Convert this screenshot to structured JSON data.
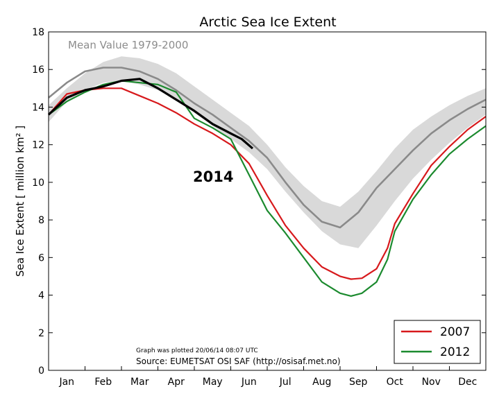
{
  "chart_data": {
    "type": "line",
    "title": "Arctic Sea Ice Extent",
    "ylabel": "Sea Ice Extent [ million km² ]",
    "xlabel": "",
    "ylim": [
      0,
      18
    ],
    "yticks": [
      0,
      2,
      4,
      6,
      8,
      10,
      12,
      14,
      16,
      18
    ],
    "xlim": [
      0,
      12
    ],
    "months": [
      "Jan",
      "Feb",
      "Mar",
      "Apr",
      "May",
      "Jun",
      "Jul",
      "Aug",
      "Sep",
      "Oct",
      "Nov",
      "Dec"
    ],
    "grid": false,
    "legend_position": "bottom-right",
    "annotations": {
      "mean_label": "Mean Value 1979-2000",
      "year_label": "2014",
      "plotted_note": "Graph was plotted 20/06/14 08:07 UTC",
      "source_note": "Source: EUMETSAT OSI SAF (http://osisaf.met.no)"
    },
    "band": {
      "x": [
        0.0,
        0.5,
        1.0,
        1.5,
        2.0,
        2.5,
        3.0,
        3.5,
        4.0,
        4.5,
        5.0,
        5.5,
        6.0,
        6.5,
        7.0,
        7.5,
        8.0,
        8.5,
        9.0,
        9.5,
        10.0,
        10.5,
        11.0,
        11.5,
        12.0
      ],
      "upper": [
        14.1,
        15.0,
        15.8,
        16.4,
        16.7,
        16.6,
        16.3,
        15.8,
        15.1,
        14.4,
        13.7,
        13.0,
        12.0,
        10.8,
        9.8,
        9.0,
        8.7,
        9.5,
        10.6,
        11.8,
        12.8,
        13.5,
        14.1,
        14.6,
        15.0
      ],
      "lower": [
        13.2,
        14.3,
        14.9,
        15.3,
        15.4,
        15.2,
        14.9,
        14.4,
        13.7,
        13.0,
        12.3,
        11.6,
        10.7,
        9.5,
        8.4,
        7.4,
        6.7,
        6.5,
        7.7,
        9.0,
        10.2,
        11.2,
        12.1,
        12.9,
        13.6
      ]
    },
    "series": [
      {
        "name": "2007",
        "color": "#d7191c",
        "x": [
          0.0,
          0.5,
          1.0,
          1.5,
          2.0,
          2.5,
          3.0,
          3.5,
          4.0,
          4.5,
          5.0,
          5.5,
          6.0,
          6.5,
          7.0,
          7.5,
          8.0,
          8.3,
          8.6,
          9.0,
          9.3,
          9.5,
          10.0,
          10.5,
          11.0,
          11.5,
          12.0
        ],
        "y": [
          13.6,
          14.7,
          14.9,
          15.0,
          15.0,
          14.6,
          14.2,
          13.7,
          13.1,
          12.6,
          12.0,
          11.0,
          9.3,
          7.7,
          6.5,
          5.5,
          5.0,
          4.85,
          4.9,
          5.4,
          6.5,
          7.8,
          9.4,
          10.9,
          11.9,
          12.8,
          13.5
        ]
      },
      {
        "name": "2012",
        "color": "#1b8a2e",
        "x": [
          0.0,
          0.5,
          1.0,
          1.5,
          2.0,
          2.5,
          3.0,
          3.5,
          4.0,
          4.5,
          5.0,
          5.5,
          6.0,
          6.5,
          7.0,
          7.5,
          8.0,
          8.3,
          8.6,
          9.0,
          9.3,
          9.5,
          10.0,
          10.5,
          11.0,
          11.5,
          12.0
        ],
        "y": [
          13.6,
          14.3,
          14.8,
          15.2,
          15.4,
          15.3,
          15.2,
          14.8,
          13.4,
          12.9,
          12.3,
          10.4,
          8.5,
          7.3,
          6.0,
          4.7,
          4.1,
          3.95,
          4.1,
          4.7,
          5.9,
          7.4,
          9.1,
          10.4,
          11.5,
          12.3,
          13.0
        ]
      },
      {
        "name": "2014",
        "color": "#000000",
        "x": [
          0.0,
          0.5,
          1.0,
          1.5,
          2.0,
          2.5,
          3.0,
          3.5,
          4.0,
          4.5,
          5.0,
          5.3,
          5.6
        ],
        "y": [
          13.6,
          14.5,
          14.9,
          15.1,
          15.4,
          15.5,
          15.0,
          14.4,
          13.8,
          13.1,
          12.6,
          12.3,
          11.8
        ]
      },
      {
        "name": "Mean Value 1979-2000",
        "color": "#8a8a8a",
        "x": [
          0.0,
          0.5,
          1.0,
          1.5,
          2.0,
          2.5,
          3.0,
          3.5,
          4.0,
          4.5,
          5.0,
          5.5,
          6.0,
          6.5,
          7.0,
          7.5,
          8.0,
          8.5,
          9.0,
          9.5,
          10.0,
          10.5,
          11.0,
          11.5,
          12.0
        ],
        "y": [
          14.5,
          15.3,
          15.9,
          16.1,
          16.1,
          15.9,
          15.5,
          14.9,
          14.2,
          13.6,
          12.9,
          12.2,
          11.3,
          10.0,
          8.8,
          7.9,
          7.6,
          8.4,
          9.7,
          10.7,
          11.7,
          12.6,
          13.3,
          13.9,
          14.4
        ]
      }
    ],
    "legend": [
      "2007",
      "2012"
    ]
  }
}
